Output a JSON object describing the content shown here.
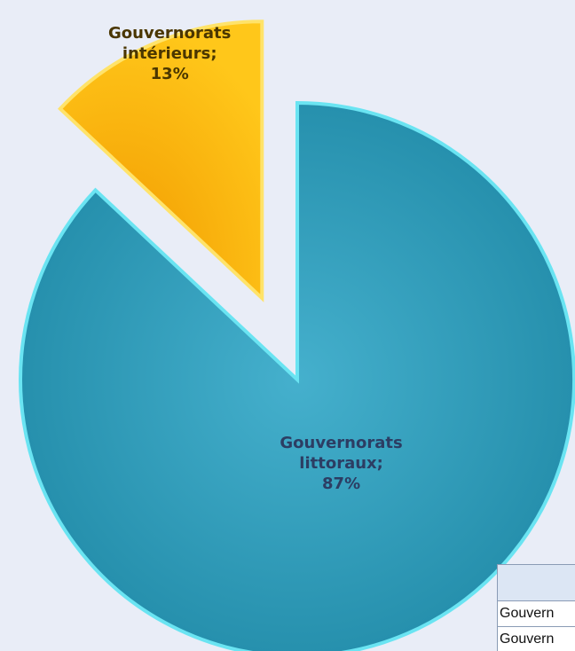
{
  "chart_data": {
    "type": "pie",
    "categories": [
      "Gouvernorats littoraux;",
      "Gouvernorats intérieurs;"
    ],
    "values": [
      87,
      13
    ],
    "value_labels": [
      "87%",
      "13%"
    ],
    "colors": [
      "#2b98b6",
      "#f5b000"
    ]
  },
  "table": {
    "rows": [
      "Gouvern",
      "Gouvern"
    ]
  }
}
